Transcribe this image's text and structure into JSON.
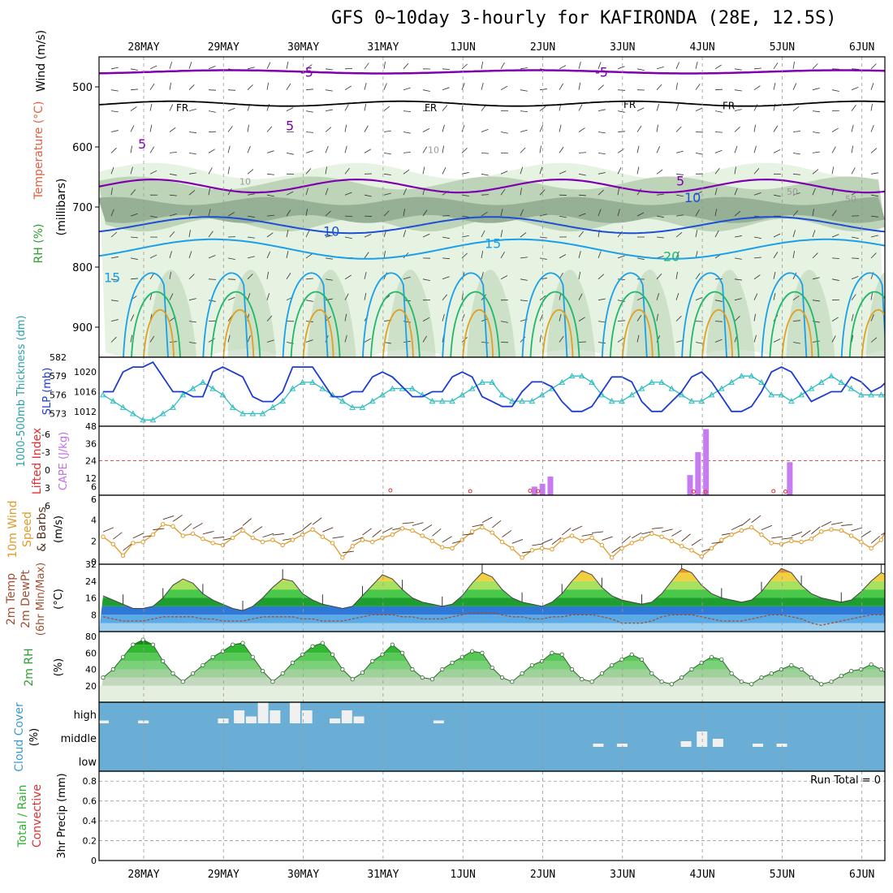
{
  "title": "GFS 0~10day 3-hourly for KAFIRONDA (28E, 12.5S)",
  "dates": [
    "28MAY",
    "29MAY",
    "30MAY",
    "31MAY",
    "1JUN",
    "2JUN",
    "3JUN",
    "4JUN",
    "5JUN",
    "6JUN"
  ],
  "panel_labels": {
    "p1_wind": "Wind (m/s)",
    "p1_temp": "Temperature (°C)",
    "p1_rh": "RH (%)",
    "p1_units": "(millibars)",
    "p2_thick": "1000-500mb Thickness (dm)",
    "p2_slp": "SLP (mb)",
    "p3_li": "Lifted Index",
    "p3_cape": "CAPE (J/kg)",
    "p4_a": "10m Wind",
    "p4_b": "Speed",
    "p4_c": "& Barbs",
    "p4_units": "(m/s)",
    "p5_a": "2m Temp",
    "p5_b": "2m DewPt",
    "p5_c": "(6hr Min/Max)",
    "p5_units": "(°C)",
    "p6_a": "2m RH",
    "p6_units": "(%)",
    "p7_a": "Cloud Cover",
    "p7_units": "(%)",
    "p7_high": "high",
    "p7_middle": "middle",
    "p7_low": "low",
    "p8_a": "Total / Rain",
    "p8_b": "Convective",
    "p8_units": "3hr Precip (mm)",
    "p8_run": "Run Total = 0"
  },
  "contour_labels": {
    "t_minus5": "-5",
    "fr": "FR",
    "t5": "5",
    "t10": "10",
    "t15": "15",
    "t20": "20",
    "rh10": "10",
    "rh50": "50"
  },
  "colors": {
    "frame": "#000000",
    "grid": "#999999",
    "temp_minus5": "#8000b0",
    "temp_5": "#8000b0",
    "temp_10": "#1c4fd6",
    "temp_15": "#1aa0e8",
    "temp_20": "#1fb86a",
    "temp_25": "#e0a020",
    "rh_light": "#e6f2e2",
    "rh_mid": "#bdd4b8",
    "rh_dark": "#96b096",
    "rh_green": "#5cd05c",
    "slp": "#1c3ccf",
    "thickness": "#2cbcc0",
    "cape": "#c77bf0",
    "li": "#e03030",
    "wind_speed": "#e09a2a",
    "rh2m": "#4ec04e",
    "cloud_bg": "#6aaed6",
    "cloud_bar": "#f0f0f0"
  },
  "chart_data": [
    {
      "type": "heatmap",
      "name": "pressure-level-cross-section",
      "ylabel": "(millibars)",
      "y_ticks": [
        500,
        600,
        700,
        800,
        900
      ],
      "ylim": [
        950,
        450
      ],
      "temperature_contours_c": [
        -5,
        0,
        5,
        10,
        15,
        20,
        25
      ],
      "rh_shading_pct": [
        10,
        50,
        70,
        90
      ]
    },
    {
      "type": "line",
      "name": "slp-thickness",
      "x_days": [
        0,
        0.125,
        0.25,
        0.375,
        0.5,
        0.625,
        0.75,
        0.875,
        1,
        1.125,
        1.25,
        1.375,
        1.5,
        1.625,
        1.75,
        1.875,
        2,
        2.125,
        2.25,
        2.375,
        2.5,
        2.625,
        2.75,
        2.875,
        3,
        3.125,
        3.25,
        3.375,
        3.5,
        3.625,
        3.75,
        3.875,
        4,
        4.125,
        4.25,
        4.375,
        4.5,
        4.625,
        4.75,
        4.875,
        5,
        5.125,
        5.25,
        5.375,
        5.5,
        5.625,
        5.75,
        5.875,
        6,
        6.125,
        6.25,
        6.375,
        6.5,
        6.625,
        6.75,
        6.875,
        7,
        7.125,
        7.25,
        7.375,
        7.5,
        7.625,
        7.75,
        7.875,
        8,
        8.125,
        8.25,
        8.375,
        8.5,
        8.625,
        8.75,
        8.875,
        9,
        9.125,
        9.25,
        9.375,
        9.5,
        9.625,
        9.75,
        9.875
      ],
      "series": [
        {
          "name": "SLP (mb)",
          "axis": "right",
          "values": [
            1016,
            1016,
            1020,
            1021,
            1021,
            1022,
            1019,
            1016,
            1016,
            1015,
            1015,
            1020,
            1021,
            1020,
            1019,
            1015,
            1014,
            1014,
            1016,
            1021,
            1021,
            1021,
            1018,
            1015,
            1015,
            1016,
            1016,
            1019,
            1020,
            1019,
            1017,
            1015,
            1015,
            1016,
            1016,
            1019,
            1020,
            1019,
            1015,
            1014,
            1013,
            1013,
            1016,
            1018,
            1018,
            1017,
            1014,
            1012,
            1012,
            1013,
            1016,
            1019,
            1019,
            1018,
            1014,
            1012,
            1012,
            1014,
            1016,
            1019,
            1020,
            1018,
            1015,
            1012,
            1012,
            1013,
            1016,
            1020,
            1021,
            1020,
            1017,
            1014,
            1015,
            1016,
            1016,
            1019,
            1018,
            1016,
            1017,
            1019
          ]
        },
        {
          "name": "Thickness (dm)",
          "axis": "left",
          "values": [
            576,
            575,
            574,
            573,
            572,
            572,
            573,
            574,
            576,
            577,
            578,
            577,
            576,
            574,
            573,
            573,
            573,
            574,
            575,
            577,
            578,
            578,
            577,
            576,
            575,
            574,
            574,
            575,
            576,
            577,
            577,
            577,
            576,
            575,
            575,
            575,
            576,
            577,
            578,
            578,
            576,
            575,
            575,
            575,
            576,
            577,
            578,
            579,
            579,
            578,
            576,
            575,
            575,
            576,
            577,
            578,
            578,
            577,
            576,
            575,
            575,
            576,
            577,
            578,
            579,
            579,
            578,
            576,
            576,
            575,
            576,
            577,
            578,
            579,
            578,
            577,
            576,
            576,
            576,
            576
          ]
        }
      ],
      "ylim_left": [
        571,
        582
      ],
      "ylim_right": [
        1009,
        1023
      ]
    },
    {
      "type": "bar",
      "name": "cape-lifted-index",
      "ylabel_left": "Lifted Index",
      "ylabel_right": "CAPE (J/kg)",
      "cape_bars": [
        {
          "day": 5.4,
          "value": 6
        },
        {
          "day": 5.5,
          "value": 8
        },
        {
          "day": 5.6,
          "value": 13
        },
        {
          "day": 7.35,
          "value": 14
        },
        {
          "day": 7.45,
          "value": 30
        },
        {
          "day": 7.55,
          "value": 46
        },
        {
          "day": 8.6,
          "value": 23
        }
      ],
      "li_points": [
        {
          "day": 3.6,
          "value": 6
        },
        {
          "day": 4.6,
          "value": 5
        },
        {
          "day": 5.35,
          "value": 5.5
        },
        {
          "day": 5.45,
          "value": 5
        },
        {
          "day": 7.4,
          "value": 4.5
        },
        {
          "day": 7.55,
          "value": 4
        },
        {
          "day": 8.4,
          "value": 5
        },
        {
          "day": 8.55,
          "value": 4.5
        }
      ],
      "ylim_cape": [
        0,
        48
      ]
    },
    {
      "type": "line",
      "name": "10m-wind-speed",
      "ylabel": "(m/s)",
      "ylim": [
        0,
        6
      ],
      "values": [
        2.4,
        1.7,
        0.6,
        1.8,
        1.9,
        2.6,
        3.6,
        3.4,
        2.5,
        2.7,
        2.2,
        1.8,
        1.6,
        2.3,
        3.0,
        2.3,
        1.9,
        2.1,
        1.6,
        2.1,
        2.6,
        3.1,
        2.4,
        1.8,
        0.4,
        1.5,
        2.1,
        1.9,
        2.3,
        2.6,
        3.2,
        3.0,
        2.5,
        2.0,
        1.4,
        1.3,
        2.1,
        2.9,
        3.3,
        2.8,
        1.9,
        1.3,
        0.4,
        1.1,
        1.3,
        1.2,
        2.1,
        2.5,
        2.0,
        2.3,
        1.6,
        0.4,
        1.3,
        1.8,
        2.2,
        2.7,
        2.4,
        2.0,
        1.5,
        1.1,
        0.5,
        1.3,
        2.1,
        2.6,
        3.0,
        3.3,
        2.6,
        1.8,
        1.7,
        2.0,
        1.9,
        2.2,
        2.9,
        3.1,
        3.0,
        2.5,
        1.9,
        1.3,
        2.1,
        4.0
      ]
    },
    {
      "type": "area",
      "name": "2m-temp-dewpoint",
      "ylabel": "(°C)",
      "ylim": [
        0,
        32
      ],
      "temp": [
        17,
        15,
        13,
        11,
        11,
        12,
        16,
        22,
        25,
        23,
        18,
        15,
        13,
        11,
        10,
        12,
        16,
        21,
        25,
        24,
        18,
        15,
        13,
        12,
        11,
        12,
        17,
        22,
        27,
        25,
        20,
        16,
        14,
        13,
        12,
        13,
        17,
        23,
        28,
        26,
        20,
        16,
        14,
        13,
        12,
        14,
        18,
        24,
        29,
        27,
        21,
        17,
        15,
        14,
        13,
        14,
        18,
        24,
        30,
        28,
        22,
        18,
        16,
        15,
        14,
        15,
        19,
        25,
        30,
        28,
        22,
        18,
        16,
        15,
        14,
        15,
        19,
        24,
        28,
        26
      ],
      "dewpoint": [
        7,
        6,
        5,
        5,
        5,
        6,
        7,
        7,
        7,
        7,
        6,
        6,
        5,
        5,
        5,
        6,
        7,
        7,
        7,
        7,
        6,
        6,
        5,
        5,
        5,
        6,
        7,
        8,
        8,
        8,
        7,
        7,
        6,
        6,
        6,
        7,
        8,
        9,
        9,
        9,
        8,
        7,
        7,
        6,
        6,
        7,
        7,
        8,
        8,
        8,
        7,
        6,
        4,
        4,
        4,
        5,
        7,
        8,
        8,
        8,
        7,
        6,
        5,
        5,
        5,
        6,
        7,
        8,
        8,
        7,
        6,
        4,
        3,
        4,
        5,
        6,
        7,
        8,
        8,
        7
      ]
    },
    {
      "type": "area",
      "name": "2m-rh",
      "ylabel": "(%)",
      "ylim": [
        0,
        80
      ],
      "values": [
        30,
        40,
        55,
        70,
        76,
        70,
        50,
        35,
        25,
        35,
        45,
        55,
        62,
        70,
        72,
        55,
        38,
        25,
        35,
        48,
        58,
        68,
        72,
        58,
        40,
        28,
        36,
        50,
        58,
        70,
        60,
        40,
        30,
        28,
        40,
        48,
        55,
        62,
        60,
        42,
        30,
        25,
        35,
        45,
        50,
        60,
        58,
        40,
        28,
        25,
        35,
        45,
        52,
        58,
        52,
        35,
        25,
        22,
        30,
        40,
        48,
        55,
        52,
        35,
        25,
        22,
        30,
        35,
        40,
        45,
        40,
        30,
        22,
        25,
        32,
        38,
        40,
        46,
        40,
        30
      ]
    },
    {
      "type": "bar",
      "name": "cloud-cover",
      "levels": [
        "high",
        "middle",
        "low"
      ],
      "high": [
        {
          "day": 0,
          "value": 5
        },
        {
          "day": 0.5,
          "value": 5
        },
        {
          "day": 1.5,
          "value": 10
        },
        {
          "day": 1.7,
          "value": 30
        },
        {
          "day": 1.85,
          "value": 15
        },
        {
          "day": 2.0,
          "value": 50
        },
        {
          "day": 2.15,
          "value": 30
        },
        {
          "day": 2.4,
          "value": 70
        },
        {
          "day": 2.55,
          "value": 30
        },
        {
          "day": 2.9,
          "value": 10
        },
        {
          "day": 3.05,
          "value": 30
        },
        {
          "day": 3.2,
          "value": 15
        },
        {
          "day": 4.2,
          "value": 5
        }
      ],
      "middle": [
        {
          "day": 6.2,
          "value": 10
        },
        {
          "day": 6.5,
          "value": 10
        },
        {
          "day": 7.3,
          "value": 20
        },
        {
          "day": 7.5,
          "value": 60
        },
        {
          "day": 7.7,
          "value": 30
        },
        {
          "day": 8.2,
          "value": 10
        },
        {
          "day": 8.5,
          "value": 10
        }
      ]
    },
    {
      "type": "bar",
      "name": "3hr-precip",
      "ylabel": "3hr Precip (mm)",
      "y_ticks": [
        0,
        0.2,
        0.4,
        0.6,
        0.8
      ],
      "ylim": [
        0,
        0.9
      ],
      "values": []
    }
  ]
}
